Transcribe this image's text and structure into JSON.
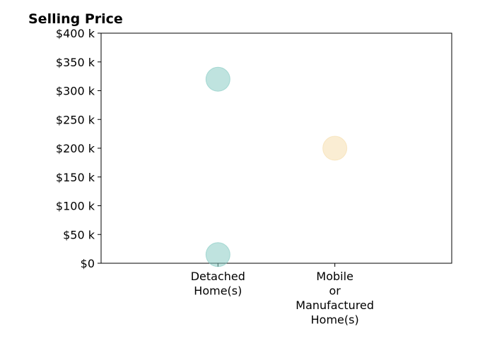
{
  "chart_data": {
    "type": "scatter",
    "title": "Selling Price",
    "xlabel": "",
    "ylabel": "",
    "categories": [
      "Detached\nHome(s)",
      "Mobile\nor\nManufactured\nHome(s)"
    ],
    "ylim": [
      0,
      400000
    ],
    "y_ticks": [
      0,
      50000,
      100000,
      150000,
      200000,
      250000,
      300000,
      350000,
      400000
    ],
    "y_tick_labels": [
      "$0",
      "$50 k",
      "$100 k",
      "$150 k",
      "$200 k",
      "$250 k",
      "$300 k",
      "$350 k",
      "$400 k"
    ],
    "grid": false,
    "points": [
      {
        "category": "Detached\nHome(s)",
        "value": 320000,
        "color": "#7fc8bf"
      },
      {
        "category": "Detached\nHome(s)",
        "value": 15000,
        "color": "#7fc8bf"
      },
      {
        "category": "Mobile\nor\nManufactured\nHome(s)",
        "value": 200000,
        "color": "#f5dca8"
      }
    ]
  }
}
